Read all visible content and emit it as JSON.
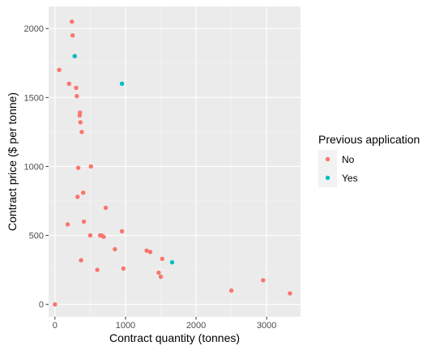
{
  "chart_data": {
    "type": "scatter",
    "xlabel": "Contract quantity (tonnes)",
    "ylabel": "Contract price ($ per tonne)",
    "xlim": [
      -90,
      3480
    ],
    "ylim": [
      -90,
      2160
    ],
    "x_ticks": [
      0,
      1000,
      2000,
      3000
    ],
    "y_ticks": [
      0,
      500,
      1000,
      1500,
      2000
    ],
    "grid": true,
    "legend": {
      "title": "Previous application",
      "position": "right"
    },
    "series": [
      {
        "name": "No",
        "color": "#F8766D",
        "points": [
          {
            "x": 0,
            "y": 0
          },
          {
            "x": 60,
            "y": 1700
          },
          {
            "x": 180,
            "y": 580
          },
          {
            "x": 200,
            "y": 1600
          },
          {
            "x": 240,
            "y": 2050
          },
          {
            "x": 250,
            "y": 1950
          },
          {
            "x": 280,
            "y": 1800
          },
          {
            "x": 300,
            "y": 1570
          },
          {
            "x": 310,
            "y": 1510
          },
          {
            "x": 320,
            "y": 780
          },
          {
            "x": 330,
            "y": 990
          },
          {
            "x": 350,
            "y": 1370
          },
          {
            "x": 355,
            "y": 1390
          },
          {
            "x": 360,
            "y": 1320
          },
          {
            "x": 370,
            "y": 320
          },
          {
            "x": 380,
            "y": 1250
          },
          {
            "x": 400,
            "y": 810
          },
          {
            "x": 410,
            "y": 600
          },
          {
            "x": 500,
            "y": 500
          },
          {
            "x": 510,
            "y": 1000
          },
          {
            "x": 600,
            "y": 250
          },
          {
            "x": 640,
            "y": 500
          },
          {
            "x": 660,
            "y": 500
          },
          {
            "x": 690,
            "y": 490
          },
          {
            "x": 720,
            "y": 700
          },
          {
            "x": 850,
            "y": 400
          },
          {
            "x": 950,
            "y": 530
          },
          {
            "x": 970,
            "y": 260
          },
          {
            "x": 1300,
            "y": 390
          },
          {
            "x": 1350,
            "y": 380
          },
          {
            "x": 1470,
            "y": 230
          },
          {
            "x": 1500,
            "y": 200
          },
          {
            "x": 1520,
            "y": 330
          },
          {
            "x": 2500,
            "y": 100
          },
          {
            "x": 2950,
            "y": 175
          },
          {
            "x": 3330,
            "y": 80
          }
        ]
      },
      {
        "name": "Yes",
        "color": "#00BFC4",
        "points": [
          {
            "x": 280,
            "y": 1800
          },
          {
            "x": 950,
            "y": 1600
          },
          {
            "x": 1660,
            "y": 305
          }
        ]
      }
    ]
  }
}
